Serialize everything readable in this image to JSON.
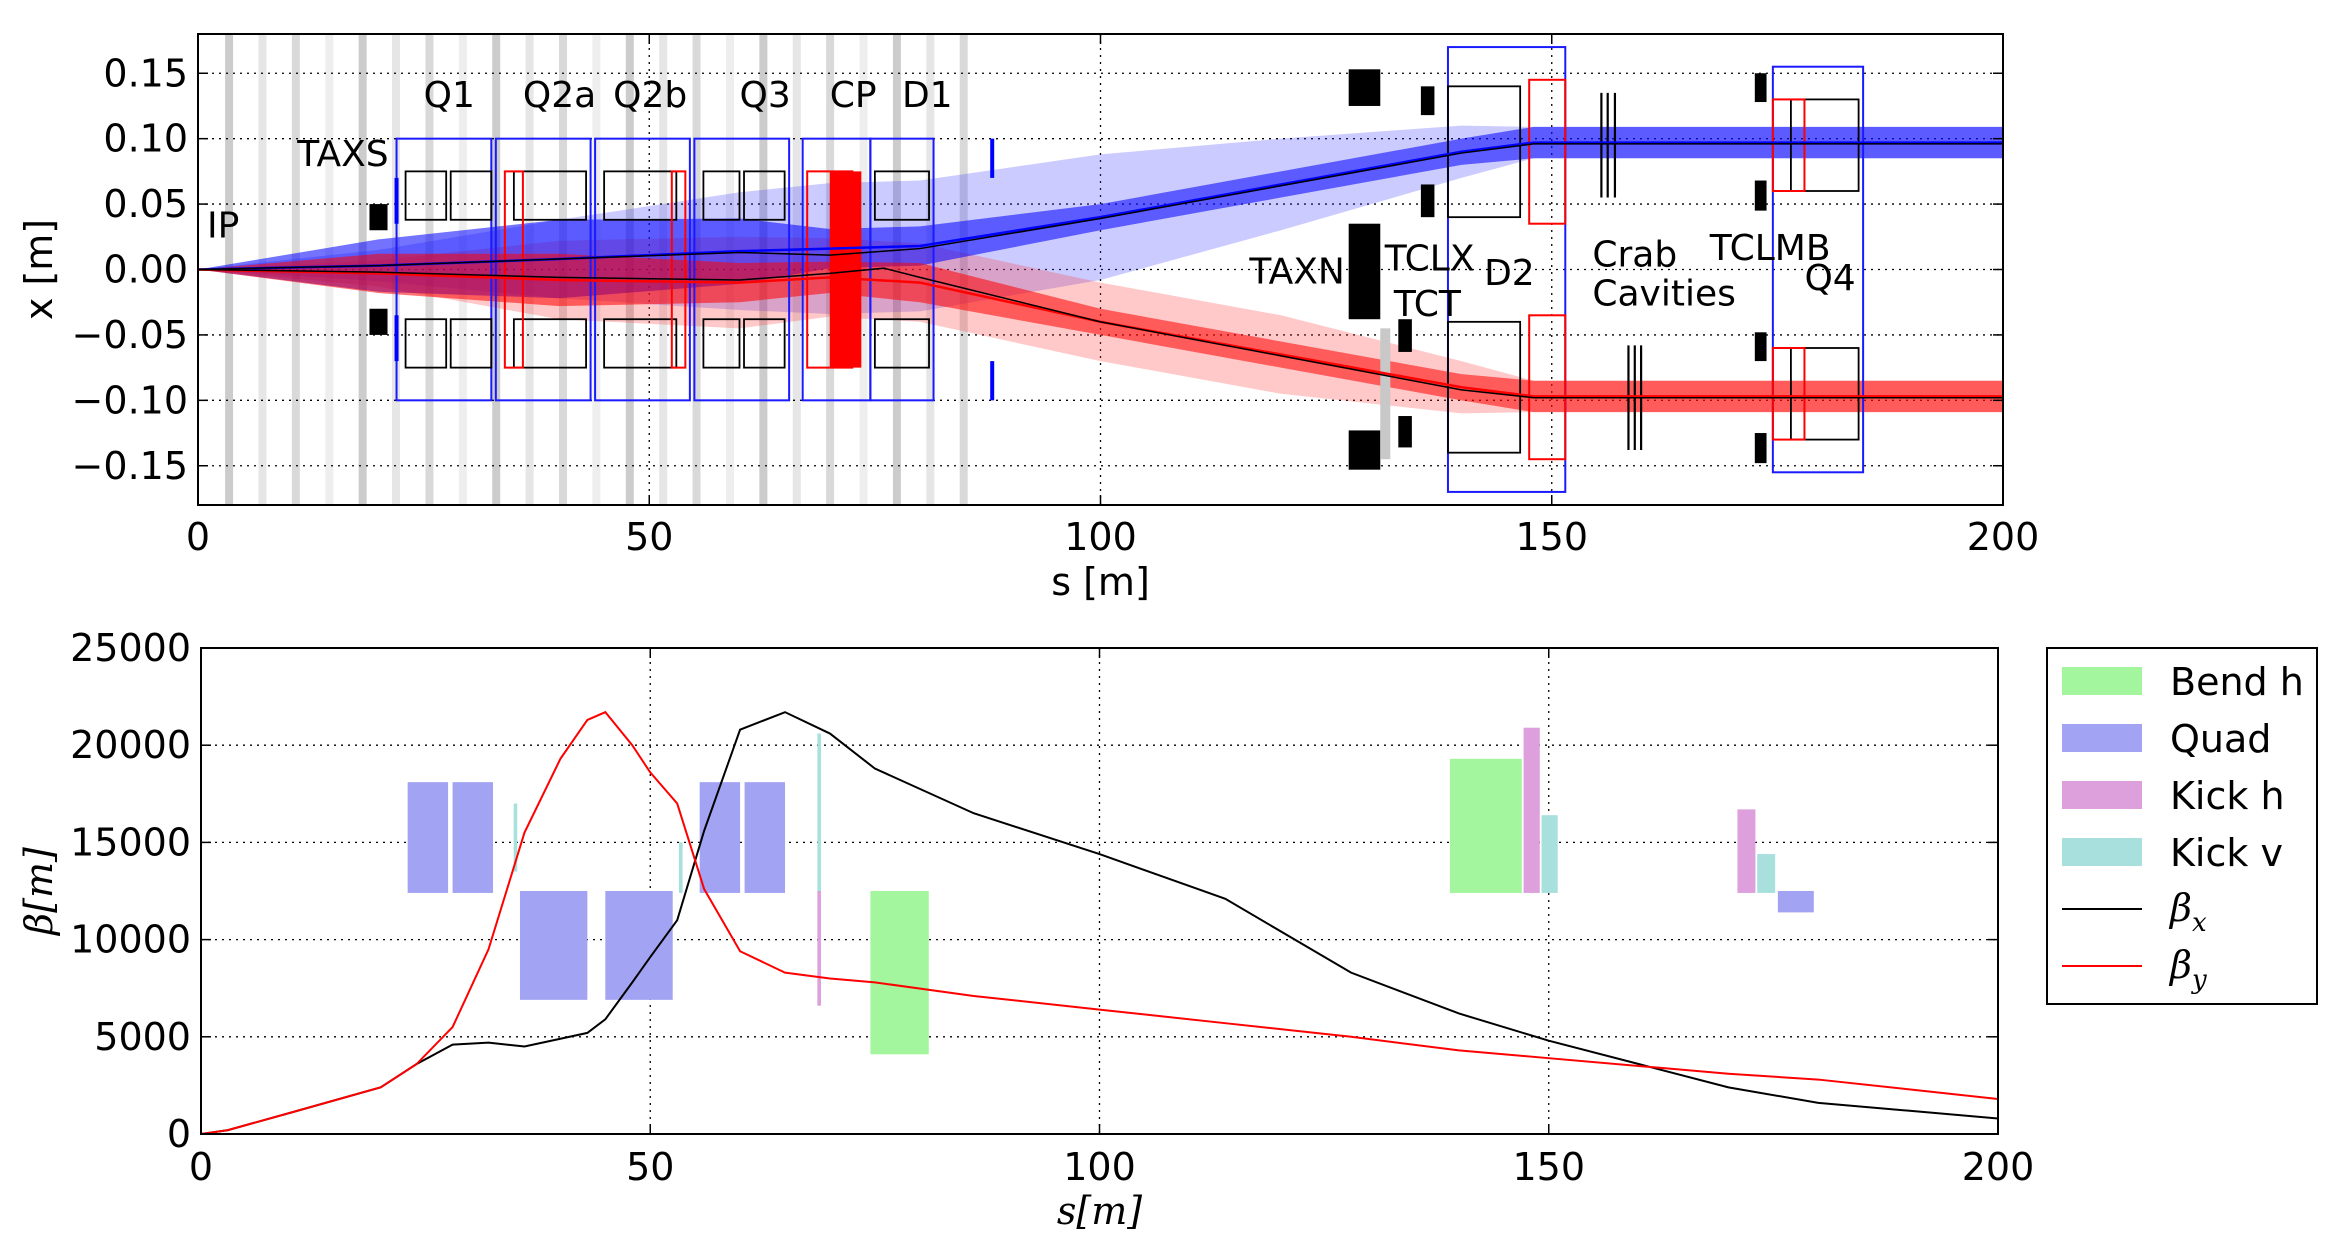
{
  "chart_data": [
    {
      "type": "line",
      "xlabel": "s [m]",
      "ylabel": "x [m]",
      "xlim": [
        0,
        200
      ],
      "ylim": [
        -0.18,
        0.18
      ],
      "xticks": [
        "0",
        "50",
        "100",
        "150",
        "200"
      ],
      "yticks": [
        "0.15",
        "0.10",
        "0.05",
        "0.00",
        "−0.05",
        "−0.10",
        "−0.15"
      ],
      "grid": true,
      "element_labels": [
        {
          "text": "IP",
          "s": 1,
          "x": 0.035
        },
        {
          "text": "TAXS",
          "s": 11,
          "x": 0.09
        },
        {
          "text": "Q1",
          "s": 25,
          "x": 0.135
        },
        {
          "text": "Q2a",
          "s": 36,
          "x": 0.135
        },
        {
          "text": "Q2b",
          "s": 46,
          "x": 0.135
        },
        {
          "text": "Q3",
          "s": 60,
          "x": 0.135
        },
        {
          "text": "CP",
          "s": 70,
          "x": 0.135
        },
        {
          "text": "D1",
          "s": 78,
          "x": 0.135
        },
        {
          "text": "TAXN",
          "s": 116.5,
          "x": 0.0
        },
        {
          "text": "TCLX",
          "s": 131.5,
          "x": 0.01
        },
        {
          "text": "TCT",
          "s": 132.5,
          "x": -0.025
        },
        {
          "text": "D2",
          "s": 142.5,
          "x": -0.001
        },
        {
          "text": "Crab",
          "s": 154.5,
          "x": 0.013
        },
        {
          "text": "Cavities",
          "s": 154.5,
          "x": -0.017
        },
        {
          "text": "TCLMB",
          "s": 167.5,
          "x": 0.018
        },
        {
          "text": "Q4",
          "s": 178,
          "x": -0.005
        }
      ],
      "series": [
        {
          "color": "#0000ff",
          "s": [
            0,
            20,
            40,
            60,
            70,
            80,
            100,
            120,
            140,
            148,
            200
          ],
          "x": [
            0,
            0.003,
            0.008,
            0.014,
            0.016,
            0.018,
            0.04,
            0.065,
            0.09,
            0.097,
            0.097
          ],
          "envelope": [
            0,
            0.02,
            0.03,
            0.025,
            0.015,
            0.015,
            0.01,
            0.01,
            0.01,
            0.012,
            0.012
          ],
          "outer_envelope": [
            0,
            0.012,
            0.03,
            0.045,
            0.05,
            0.05,
            0.048,
            0.035,
            0.02,
            0.012,
            0.012
          ]
        },
        {
          "color": "#ff0000",
          "s": [
            0,
            20,
            40,
            60,
            70,
            80,
            100,
            120,
            140,
            148,
            200
          ],
          "x": [
            0,
            -0.003,
            -0.008,
            -0.01,
            -0.006,
            -0.01,
            -0.04,
            -0.065,
            -0.09,
            -0.097,
            -0.097
          ],
          "envelope": [
            0,
            0.015,
            0.02,
            0.015,
            0.012,
            0.015,
            0.01,
            0.01,
            0.01,
            0.012,
            0.012
          ],
          "outer_envelope": [
            0,
            0.01,
            0.03,
            0.035,
            0.03,
            0.03,
            0.03,
            0.03,
            0.02,
            0.012,
            0.012
          ]
        },
        {
          "color": "#000000",
          "s": [
            0,
            20,
            40,
            60,
            70,
            80,
            100,
            120,
            140,
            148,
            200
          ],
          "x": [
            0,
            0.003,
            0.008,
            0.013,
            0.011,
            0.016,
            0.039,
            0.064,
            0.089,
            0.096,
            0.096
          ]
        },
        {
          "color": "#000000",
          "s": [
            0,
            20,
            40,
            60,
            70,
            76,
            80,
            100,
            120,
            140,
            148,
            200
          ],
          "x": [
            0,
            -0.002,
            -0.006,
            -0.008,
            -0.003,
            0.001,
            -0.006,
            -0.04,
            -0.066,
            -0.092,
            -0.098,
            -0.098
          ]
        }
      ]
    },
    {
      "type": "line",
      "xlabel": "s[m]",
      "ylabel": "β[m]",
      "xlim": [
        0,
        200
      ],
      "ylim": [
        0,
        25000
      ],
      "xticks": [
        "0",
        "50",
        "100",
        "150",
        "200"
      ],
      "yticks": [
        "0",
        "5000",
        "10000",
        "15000",
        "20000",
        "25000"
      ],
      "grid": true,
      "legend": "outside-right",
      "legend_entries": [
        {
          "label": "Bend h",
          "color": "#a3f59e",
          "kind": "patch"
        },
        {
          "label": "Quad",
          "color": "#a3a3f3",
          "kind": "patch"
        },
        {
          "label": "Kick h",
          "color": "#dda0dd",
          "kind": "patch"
        },
        {
          "label": "Kick v",
          "color": "#a8e0de",
          "kind": "patch"
        },
        {
          "label": "β",
          "sub": "x",
          "color": "#000000",
          "kind": "line"
        },
        {
          "label": "β",
          "sub": "y",
          "color": "#ff0000",
          "kind": "line"
        }
      ],
      "elements": [
        {
          "kind": "Quad",
          "s": [
            23,
            27.5
          ],
          "beta": [
            12400,
            18100
          ]
        },
        {
          "kind": "Quad",
          "s": [
            28,
            32.5
          ],
          "beta": [
            12400,
            18100
          ]
        },
        {
          "kind": "Kick v",
          "s": [
            34.8,
            35.2
          ],
          "beta": [
            13500,
            17000
          ]
        },
        {
          "kind": "Quad",
          "s": [
            35.5,
            43
          ],
          "beta": [
            6900,
            12500
          ]
        },
        {
          "kind": "Quad",
          "s": [
            45,
            52.5
          ],
          "beta": [
            6900,
            12500
          ]
        },
        {
          "kind": "Kick v",
          "s": [
            53.2,
            53.6
          ],
          "beta": [
            12400,
            15000
          ]
        },
        {
          "kind": "Quad",
          "s": [
            55.5,
            60
          ],
          "beta": [
            12400,
            18100
          ]
        },
        {
          "kind": "Quad",
          "s": [
            60.5,
            65
          ],
          "beta": [
            12400,
            18100
          ]
        },
        {
          "kind": "Kick v",
          "s": [
            68.6,
            69
          ],
          "beta": [
            12400,
            20600
          ]
        },
        {
          "kind": "Kick h",
          "s": [
            68.6,
            69
          ],
          "beta": [
            6600,
            12500
          ]
        },
        {
          "kind": "Bend h",
          "s": [
            74.5,
            81
          ],
          "beta": [
            4100,
            12500
          ]
        },
        {
          "kind": "Bend h",
          "s": [
            139,
            147
          ],
          "beta": [
            12400,
            19300
          ]
        },
        {
          "kind": "Kick h",
          "s": [
            147.2,
            149
          ],
          "beta": [
            12400,
            20900
          ]
        },
        {
          "kind": "Kick v",
          "s": [
            149.2,
            151
          ],
          "beta": [
            12400,
            16400
          ]
        },
        {
          "kind": "Kick h",
          "s": [
            171,
            173
          ],
          "beta": [
            12400,
            16700
          ]
        },
        {
          "kind": "Kick v",
          "s": [
            173.2,
            175.2
          ],
          "beta": [
            12400,
            14400
          ]
        },
        {
          "kind": "Quad",
          "s": [
            175.5,
            179.5
          ],
          "beta": [
            11400,
            12500
          ]
        }
      ],
      "series": [
        {
          "sub": "x",
          "color": "#000000",
          "x": [
            0,
            3,
            10,
            20,
            24,
            28,
            32,
            36,
            40,
            43,
            45,
            48,
            50,
            53,
            56,
            60,
            65,
            70,
            75,
            86,
            100,
            114,
            128,
            140,
            150,
            160,
            170,
            180,
            190,
            200
          ],
          "y": [
            0,
            200,
            1100,
            2400,
            3600,
            4600,
            4700,
            4500,
            4900,
            5200,
            5900,
            7800,
            9100,
            11000,
            15600,
            20800,
            21700,
            20600,
            18800,
            16500,
            14400,
            12100,
            8300,
            6200,
            4800,
            3600,
            2400,
            1600,
            1200,
            800
          ]
        },
        {
          "sub": "y",
          "color": "#ff0000",
          "x": [
            0,
            3,
            10,
            20,
            24,
            28,
            32,
            36,
            40,
            43,
            45,
            48,
            50,
            53,
            56,
            60,
            65,
            70,
            75,
            86,
            100,
            114,
            128,
            140,
            150,
            160,
            170,
            180,
            190,
            200
          ],
          "y": [
            0,
            200,
            1100,
            2400,
            3600,
            5500,
            9500,
            15500,
            19300,
            21300,
            21700,
            20000,
            18600,
            17000,
            12600,
            9400,
            8300,
            8000,
            7800,
            7100,
            6400,
            5700,
            5000,
            4300,
            3900,
            3500,
            3100,
            2800,
            2300,
            1800
          ]
        }
      ]
    }
  ]
}
